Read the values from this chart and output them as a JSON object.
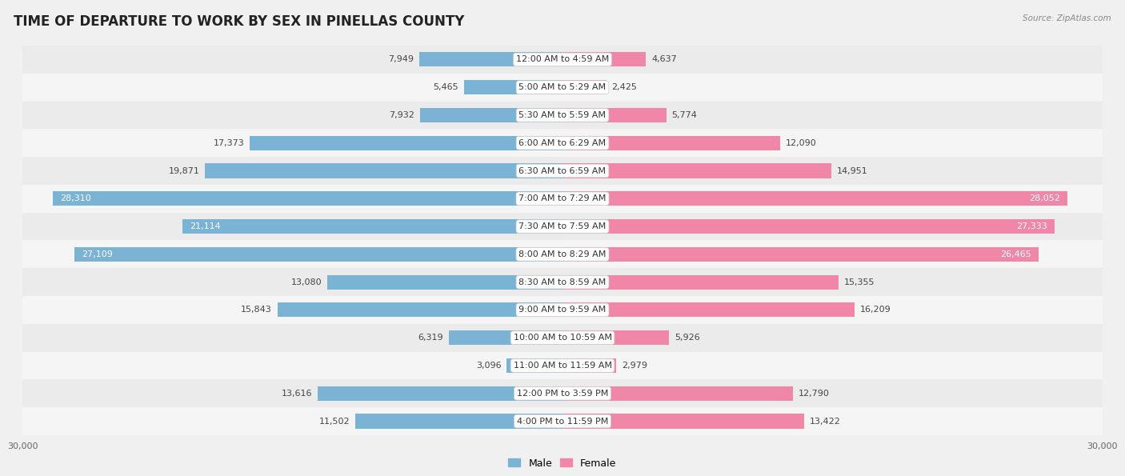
{
  "title": "TIME OF DEPARTURE TO WORK BY SEX IN PINELLAS COUNTY",
  "source": "Source: ZipAtlas.com",
  "categories": [
    "12:00 AM to 4:59 AM",
    "5:00 AM to 5:29 AM",
    "5:30 AM to 5:59 AM",
    "6:00 AM to 6:29 AM",
    "6:30 AM to 6:59 AM",
    "7:00 AM to 7:29 AM",
    "7:30 AM to 7:59 AM",
    "8:00 AM to 8:29 AM",
    "8:30 AM to 8:59 AM",
    "9:00 AM to 9:59 AM",
    "10:00 AM to 10:59 AM",
    "11:00 AM to 11:59 AM",
    "12:00 PM to 3:59 PM",
    "4:00 PM to 11:59 PM"
  ],
  "male": [
    7949,
    5465,
    7932,
    17373,
    19871,
    28310,
    21114,
    27109,
    13080,
    15843,
    6319,
    3096,
    13616,
    11502
  ],
  "female": [
    4637,
    2425,
    5774,
    12090,
    14951,
    28052,
    27333,
    26465,
    15355,
    16209,
    5926,
    2979,
    12790,
    13422
  ],
  "male_color": "#7ab3d4",
  "female_color": "#f086a8",
  "male_label": "Male",
  "female_label": "Female",
  "xlim": 30000,
  "bar_height": 0.52,
  "row_bg_even": "#ebebeb",
  "row_bg_odd": "#f5f5f5",
  "fig_bg": "#f0f0f0",
  "title_fontsize": 12,
  "label_fontsize": 8,
  "axis_fontsize": 8,
  "cat_fontsize": 8
}
